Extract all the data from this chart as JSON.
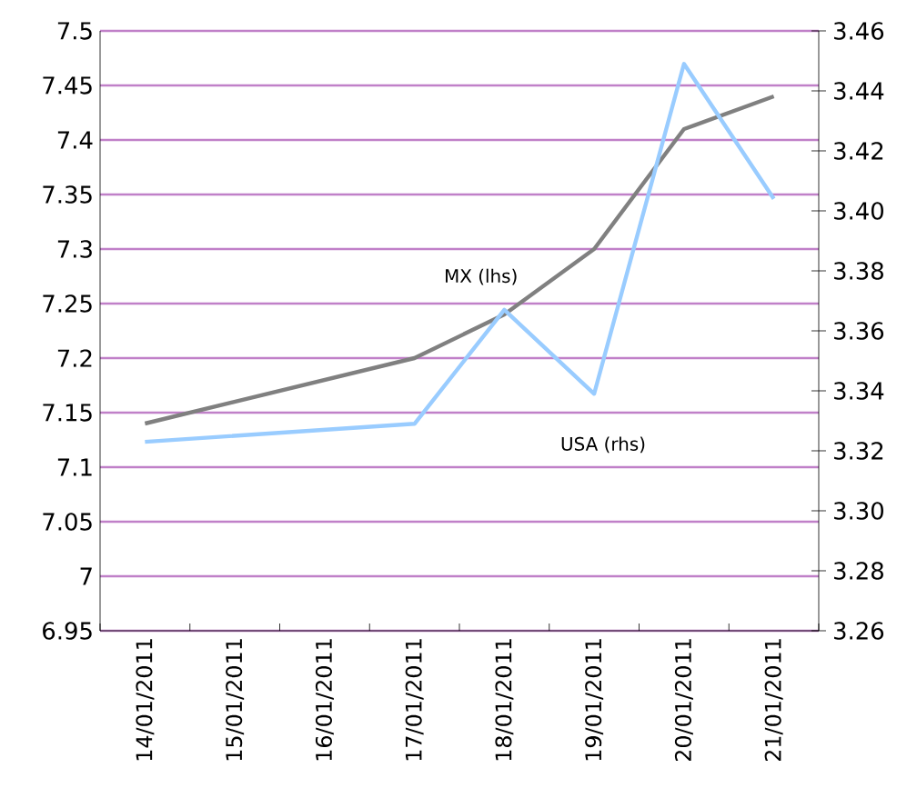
{
  "chart_data": {
    "type": "line",
    "categories": [
      "14/01/2011",
      "15/01/2011",
      "16/01/2011",
      "17/01/2011",
      "18/01/2011",
      "19/01/2011",
      "20/01/2011",
      "21/01/2011"
    ],
    "series": [
      {
        "name": "MX (lhs)",
        "color": "#808080",
        "values": [
          7.14,
          null,
          null,
          7.2,
          7.24,
          7.3,
          7.41,
          7.44
        ]
      },
      {
        "name": "USA (rhs)",
        "color": "#99ccff",
        "axis": "y2",
        "values": [
          3.323,
          null,
          null,
          3.329,
          3.367,
          3.339,
          3.449,
          3.404
        ]
      }
    ],
    "ylim": [
      6.95,
      7.5
    ],
    "yticks": [
      6.95,
      7,
      7.05,
      7.1,
      7.15,
      7.2,
      7.25,
      7.3,
      7.35,
      7.4,
      7.45,
      7.5
    ],
    "y2lim": [
      3.26,
      3.46
    ],
    "y2ticks": [
      {
        "value": 3.26,
        "label": "3.26"
      },
      {
        "value": 3.28,
        "label": "3.28"
      },
      {
        "value": 3.3,
        "label": "3.30"
      },
      {
        "value": 3.32,
        "label": "3.32"
      },
      {
        "value": 3.34,
        "label": "3.34"
      },
      {
        "value": 3.36,
        "label": "3.36"
      },
      {
        "value": 3.38,
        "label": "3.38"
      },
      {
        "value": 3.4,
        "label": "3.40"
      },
      {
        "value": 3.42,
        "label": "3.42"
      },
      {
        "value": 3.44,
        "label": "3.44"
      },
      {
        "value": 3.46,
        "label": "3.46"
      }
    ],
    "grid": "y",
    "marker": "none",
    "line_style": "solid"
  }
}
